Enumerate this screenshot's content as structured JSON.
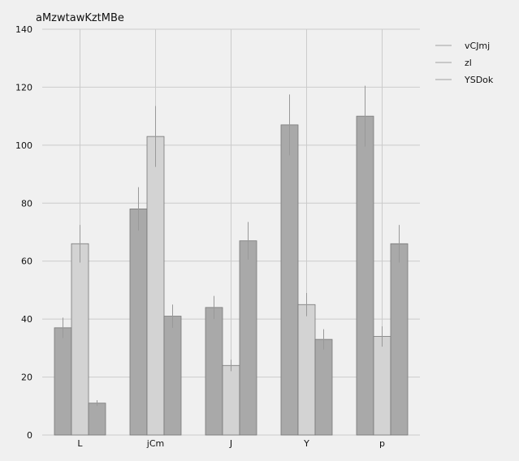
{
  "chart_data": {
    "type": "bar",
    "title": "aMzwtawKztMBe",
    "xlabel": "",
    "ylabel": "",
    "categories": [
      "L",
      "jCm",
      "J",
      "Y",
      "p"
    ],
    "ylim": [
      0,
      140
    ],
    "yticks": [
      0,
      20,
      40,
      60,
      80,
      100,
      120,
      140
    ],
    "grid": true,
    "legend_position": "top-right",
    "series": [
      {
        "name": "vCJmj",
        "values": [
          37,
          78,
          44,
          107,
          110
        ],
        "errors": [
          3.5,
          7.5,
          4,
          10.5,
          10.5
        ],
        "color": "#a9a9a9"
      },
      {
        "name": "zl",
        "values": [
          66,
          103,
          24,
          45,
          34
        ],
        "errors": [
          6.5,
          10.5,
          2,
          4,
          3.5
        ],
        "color": "#d3d3d3"
      },
      {
        "name": "YSDok",
        "values": [
          11,
          41,
          67,
          33,
          66
        ],
        "errors": [
          1,
          4,
          6.5,
          3.5,
          6.5
        ],
        "color": "#a9a9a9"
      }
    ],
    "colors": {
      "background": "#f0f0f0",
      "grid": "#cbcbcb",
      "bar_edge": "#777777",
      "error_bar": "#999999"
    }
  }
}
